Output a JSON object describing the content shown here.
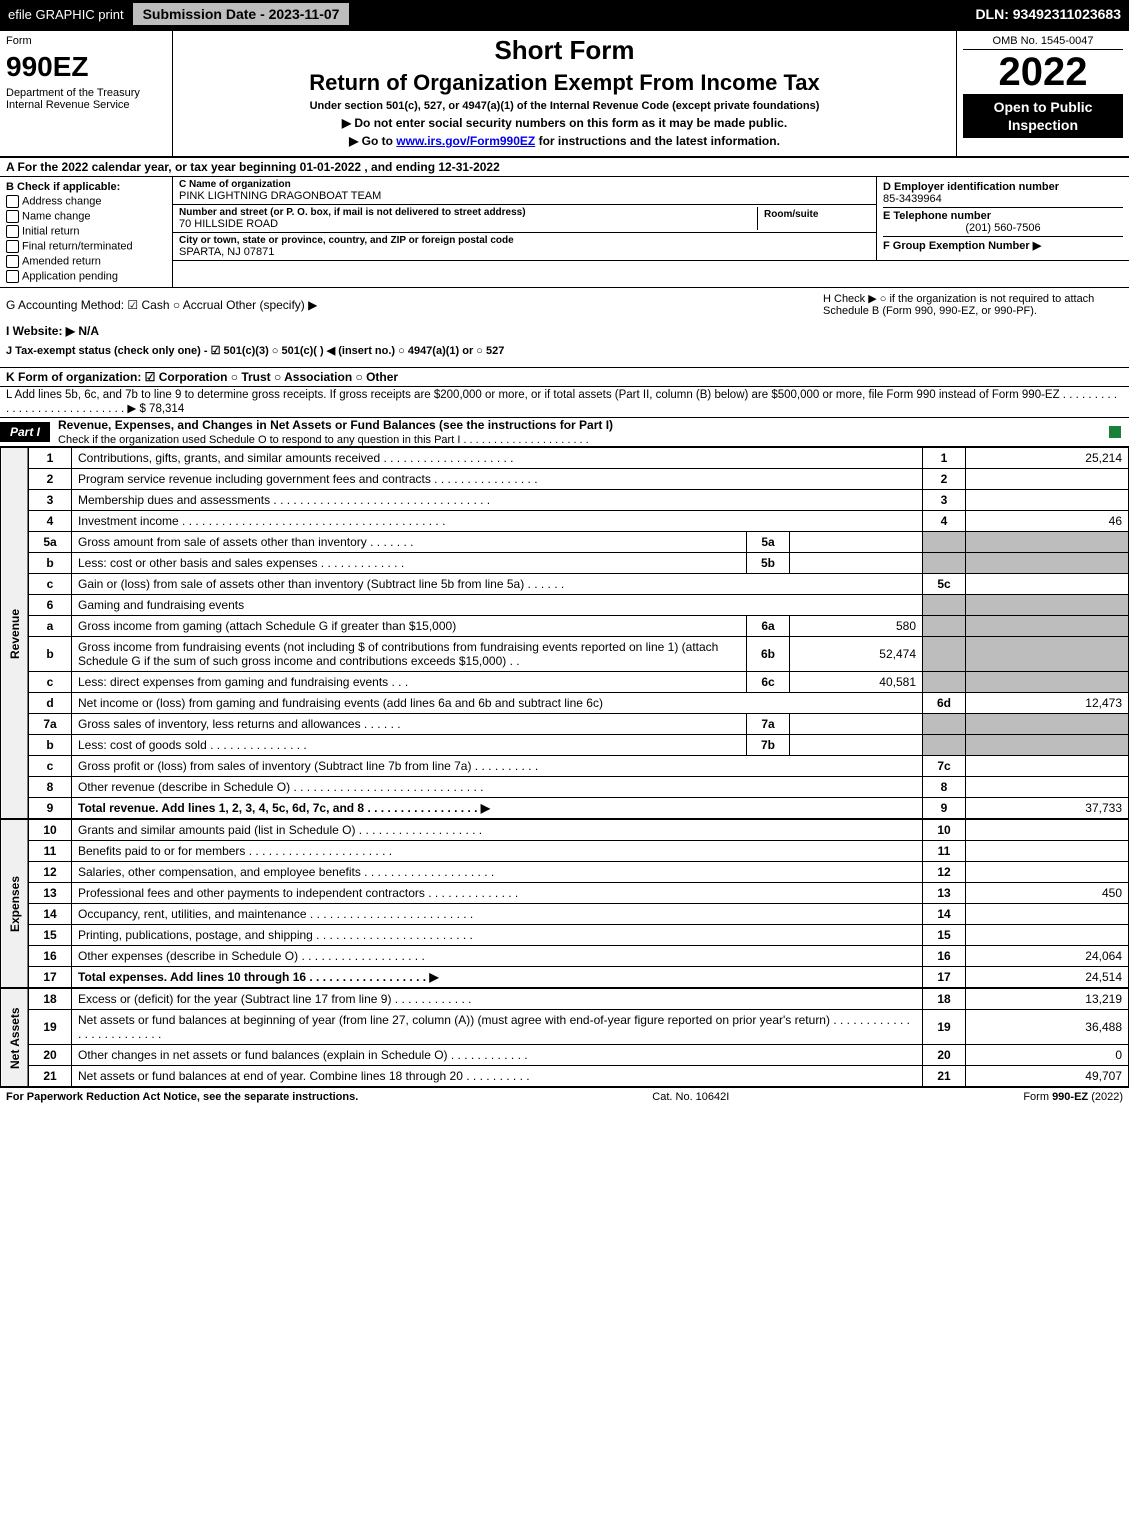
{
  "top_bar": {
    "efile_label": "efile GRAPHIC print",
    "sub_date_label": "Submission Date - 2023-11-07",
    "dln_label": "DLN: 93492311023683"
  },
  "header": {
    "form_word": "Form",
    "form_num": "990EZ",
    "dept": "Department of the Treasury",
    "irs": "Internal Revenue Service",
    "short": "Short Form",
    "title": "Return of Organization Exempt From Income Tax",
    "under": "Under section 501(c), 527, or 4947(a)(1) of the Internal Revenue Code (except private foundations)",
    "instr1": "▶ Do not enter social security numbers on this form as it may be made public.",
    "instr2_pre": "▶ Go to ",
    "instr2_link": "www.irs.gov/Form990EZ",
    "instr2_post": " for instructions and the latest information.",
    "omb": "OMB No. 1545-0047",
    "year": "2022",
    "open": "Open to Public Inspection"
  },
  "line_a": "A  For the 2022 calendar year, or tax year beginning 01-01-2022 , and ending 12-31-2022",
  "col_b": {
    "header": "B  Check if applicable:",
    "items": [
      "Address change",
      "Name change",
      "Initial return",
      "Final return/terminated",
      "Amended return",
      "Application pending"
    ]
  },
  "org": {
    "c_label": "C Name of organization",
    "c_val": "PINK LIGHTNING DRAGONBOAT TEAM",
    "street_label": "Number and street (or P. O. box, if mail is not delivered to street address)",
    "street_val": "70 HILLSIDE ROAD",
    "room_label": "Room/suite",
    "city_label": "City or town, state or province, country, and ZIP or foreign postal code",
    "city_val": "SPARTA, NJ  07871"
  },
  "right_box": {
    "d_label": "D Employer identification number",
    "d_val": "85-3439964",
    "e_label": "E Telephone number",
    "e_val": "(201) 560-7506",
    "f_label": "F Group Exemption Number  ▶"
  },
  "ghij": {
    "g": "G Accounting Method:   ☑ Cash  ○ Accrual  Other (specify) ▶",
    "h": "H  Check ▶  ○  if the organization is not required to attach Schedule B (Form 990, 990-EZ, or 990-PF).",
    "i": "I Website: ▶ N/A",
    "j": "J Tax-exempt status (check only one) - ☑ 501(c)(3) ○ 501(c)(  ) ◀ (insert no.) ○ 4947(a)(1) or ○ 527"
  },
  "line_k": "K Form of organization:  ☑ Corporation  ○ Trust  ○ Association  ○ Other",
  "line_l": "L Add lines 5b, 6c, and 7b to line 9 to determine gross receipts. If gross receipts are $200,000 or more, or if total assets (Part II, column (B) below) are $500,000 or more, file Form 990 instead of Form 990-EZ . . . . . . . . . . . . . . . . . . . . . . . . . . . . ▶ $ 78,314",
  "part1": {
    "tab": "Part I",
    "title": "Revenue, Expenses, and Changes in Net Assets or Fund Balances (see the instructions for Part I)",
    "sub": "Check if the organization used Schedule O to respond to any question in this Part I . . . . . . . . . . . . . . . . . . . . ."
  },
  "sections": {
    "revenue": "Revenue",
    "expenses": "Expenses",
    "net": "Net Assets"
  },
  "lines": [
    {
      "n": "1",
      "d": "Contributions, gifts, grants, and similar amounts received . . . . . . . . . . . . . . . . . . . .",
      "box": "1",
      "v": "25,214"
    },
    {
      "n": "2",
      "d": "Program service revenue including government fees and contracts . . . . . . . . . . . . . . . .",
      "box": "2",
      "v": ""
    },
    {
      "n": "3",
      "d": "Membership dues and assessments . . . . . . . . . . . . . . . . . . . . . . . . . . . . . . . . .",
      "box": "3",
      "v": ""
    },
    {
      "n": "4",
      "d": "Investment income . . . . . . . . . . . . . . . . . . . . . . . . . . . . . . . . . . . . . . . .",
      "box": "4",
      "v": "46"
    },
    {
      "n": "5a",
      "d": "Gross amount from sale of assets other than inventory . . . . . . .",
      "inner": "5a",
      "iv": "",
      "grey": true
    },
    {
      "n": "b",
      "d": "Less: cost or other basis and sales expenses . . . . . . . . . . . . .",
      "inner": "5b",
      "iv": "",
      "grey": true
    },
    {
      "n": "c",
      "d": "Gain or (loss) from sale of assets other than inventory (Subtract line 5b from line 5a) . . . . . .",
      "box": "5c",
      "v": ""
    },
    {
      "n": "6",
      "d": "Gaming and fundraising events",
      "grey": true
    },
    {
      "n": "a",
      "d": "Gross income from gaming (attach Schedule G if greater than $15,000)",
      "inner": "6a",
      "iv": "580",
      "grey": true
    },
    {
      "n": "b",
      "d": "Gross income from fundraising events (not including $               of contributions from fundraising events reported on line 1) (attach Schedule G if the sum of such gross income and contributions exceeds $15,000)   .  .",
      "inner": "6b",
      "iv": "52,474",
      "grey": true
    },
    {
      "n": "c",
      "d": "Less: direct expenses from gaming and fundraising events   .  .  .",
      "inner": "6c",
      "iv": "40,581",
      "grey": true
    },
    {
      "n": "d",
      "d": "Net income or (loss) from gaming and fundraising events (add lines 6a and 6b and subtract line 6c)",
      "box": "6d",
      "v": "12,473"
    },
    {
      "n": "7a",
      "d": "Gross sales of inventory, less returns and allowances . . . . . .",
      "inner": "7a",
      "iv": "",
      "grey": true
    },
    {
      "n": "b",
      "d": "Less: cost of goods sold      .  .  .  .  .  .  .  .  .  .  .  .  .  .  .",
      "inner": "7b",
      "iv": "",
      "grey": true
    },
    {
      "n": "c",
      "d": "Gross profit or (loss) from sales of inventory (Subtract line 7b from line 7a) . . . . . . . . . .",
      "box": "7c",
      "v": ""
    },
    {
      "n": "8",
      "d": "Other revenue (describe in Schedule O) . . . . . . . . . . . . . . . . . . . . . . . . . . . . .",
      "box": "8",
      "v": ""
    },
    {
      "n": "9",
      "d": "Total revenue. Add lines 1, 2, 3, 4, 5c, 6d, 7c, and 8  . . . . . . . . . . . . . . . . .  ▶",
      "box": "9",
      "v": "37,733",
      "bold": true
    }
  ],
  "exp_lines": [
    {
      "n": "10",
      "d": "Grants and similar amounts paid (list in Schedule O) . . . . . . . . . . . . . . . . . . .",
      "box": "10",
      "v": ""
    },
    {
      "n": "11",
      "d": "Benefits paid to or for members    .  .  .  .  .  .  .  .  .  .  .  .  .  .  .  .  .  .  .  .  .  .",
      "box": "11",
      "v": ""
    },
    {
      "n": "12",
      "d": "Salaries, other compensation, and employee benefits . . . . . . . . . . . . . . . . . . . .",
      "box": "12",
      "v": ""
    },
    {
      "n": "13",
      "d": "Professional fees and other payments to independent contractors . . . . . . . . . . . . . .",
      "box": "13",
      "v": "450"
    },
    {
      "n": "14",
      "d": "Occupancy, rent, utilities, and maintenance . . . . . . . . . . . . . . . . . . . . . . . . .",
      "box": "14",
      "v": ""
    },
    {
      "n": "15",
      "d": "Printing, publications, postage, and shipping . . . . . . . . . . . . . . . . . . . . . . . .",
      "box": "15",
      "v": ""
    },
    {
      "n": "16",
      "d": "Other expenses (describe in Schedule O)   .  .  .  .  .  .  .  .  .  .  .  .  .  .  .  .  .  .  .",
      "box": "16",
      "v": "24,064"
    },
    {
      "n": "17",
      "d": "Total expenses. Add lines 10 through 16    .  .  .  .  .  .  .  .  .  .  .  .  .  .  .  .  .  .  ▶",
      "box": "17",
      "v": "24,514",
      "bold": true
    }
  ],
  "net_lines": [
    {
      "n": "18",
      "d": "Excess or (deficit) for the year (Subtract line 17 from line 9)      .  .  .  .  .  .  .  .  .  .  .  .",
      "box": "18",
      "v": "13,219"
    },
    {
      "n": "19",
      "d": "Net assets or fund balances at beginning of year (from line 27, column (A)) (must agree with end-of-year figure reported on prior year's return) . . . . . . . . . . . . . . . . . . . . . . . . .",
      "box": "19",
      "v": "36,488"
    },
    {
      "n": "20",
      "d": "Other changes in net assets or fund balances (explain in Schedule O) . . . . . . . . . . . .",
      "box": "20",
      "v": "0"
    },
    {
      "n": "21",
      "d": "Net assets or fund balances at end of year. Combine lines 18 through 20 . . . . . . . . . .",
      "box": "21",
      "v": "49,707"
    }
  ],
  "footer": {
    "left": "For Paperwork Reduction Act Notice, see the separate instructions.",
    "mid": "Cat. No. 10642I",
    "right": "Form 990-EZ (2022)"
  },
  "colors": {
    "black": "#000000",
    "grey_cell": "#bdbdbd",
    "check_green": "#1a7f37"
  }
}
